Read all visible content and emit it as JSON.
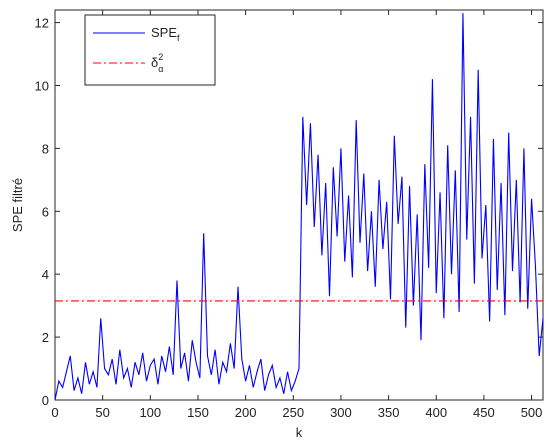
{
  "chart_data": {
    "type": "line",
    "x_label": "k",
    "y_label": "SPE filtré",
    "x": [
      0,
      4,
      8,
      12,
      16,
      20,
      24,
      28,
      32,
      36,
      40,
      44,
      48,
      52,
      56,
      60,
      64,
      68,
      72,
      76,
      80,
      84,
      88,
      92,
      96,
      100,
      104,
      108,
      112,
      116,
      120,
      124,
      128,
      132,
      136,
      140,
      144,
      148,
      152,
      156,
      160,
      164,
      168,
      172,
      176,
      180,
      184,
      188,
      192,
      196,
      200,
      204,
      208,
      212,
      216,
      220,
      224,
      228,
      232,
      236,
      240,
      244,
      248,
      252,
      256,
      260,
      264,
      268,
      272,
      276,
      280,
      284,
      288,
      292,
      296,
      300,
      304,
      308,
      312,
      316,
      320,
      324,
      328,
      332,
      336,
      340,
      344,
      348,
      352,
      356,
      360,
      364,
      368,
      372,
      376,
      380,
      384,
      388,
      392,
      396,
      400,
      404,
      408,
      412,
      416,
      420,
      424,
      428,
      432,
      436,
      440,
      444,
      448,
      452,
      456,
      460,
      464,
      468,
      472,
      476,
      480,
      484,
      488,
      492,
      496,
      500,
      504,
      508,
      512
    ],
    "series": [
      {
        "name": "SPE",
        "subscript": "f",
        "color": "#0000ff",
        "style": "solid",
        "values": [
          0,
          0.6,
          0.4,
          0.9,
          1.4,
          0.3,
          0.7,
          0.2,
          1.2,
          0.5,
          0.9,
          0.4,
          2.6,
          1.0,
          0.8,
          1.3,
          0.5,
          1.6,
          0.7,
          1.0,
          0.4,
          1.2,
          0.8,
          1.5,
          0.6,
          1.1,
          1.3,
          0.5,
          1.4,
          0.9,
          1.7,
          0.8,
          3.8,
          1.0,
          1.5,
          0.6,
          1.9,
          1.2,
          0.7,
          5.3,
          1.4,
          0.8,
          1.6,
          0.5,
          1.2,
          0.9,
          1.8,
          1.0,
          3.6,
          1.3,
          0.6,
          1.1,
          0.4,
          0.9,
          1.3,
          0.3,
          0.8,
          1.1,
          0.4,
          0.7,
          0.2,
          0.9,
          0.3,
          0.6,
          1.0,
          9.0,
          6.2,
          8.8,
          5.5,
          7.8,
          4.6,
          6.9,
          3.3,
          7.4,
          5.2,
          8.0,
          4.4,
          6.5,
          3.9,
          8.9,
          5.0,
          7.2,
          4.1,
          6.0,
          3.6,
          7.0,
          4.8,
          6.3,
          3.2,
          8.4,
          5.6,
          7.1,
          2.3,
          6.8,
          3.0,
          5.9,
          1.9,
          7.5,
          4.2,
          10.2,
          3.4,
          6.6,
          2.6,
          8.1,
          4.0,
          7.3,
          2.8,
          12.3,
          5.1,
          9.0,
          3.7,
          10.5,
          4.5,
          6.2,
          2.5,
          8.3,
          3.5,
          6.9,
          2.7,
          8.5,
          4.1,
          7.0,
          3.1,
          8.0,
          2.9,
          6.4,
          4.3,
          1.4,
          2.6
        ]
      },
      {
        "name": "δ",
        "subscript": "α",
        "superscript": "2",
        "color": "#ff0000",
        "style": "dashdot",
        "x": [
          0,
          512
        ],
        "values": [
          3.15,
          3.15
        ]
      }
    ],
    "xlim": [
      0,
      512
    ],
    "xticks": [
      0,
      50,
      100,
      150,
      200,
      250,
      300,
      350,
      400,
      450,
      500
    ],
    "ylim": [
      0,
      12.4
    ],
    "yticks": [
      0,
      2,
      4,
      6,
      8,
      10,
      12
    ],
    "legend": "upper-left"
  }
}
